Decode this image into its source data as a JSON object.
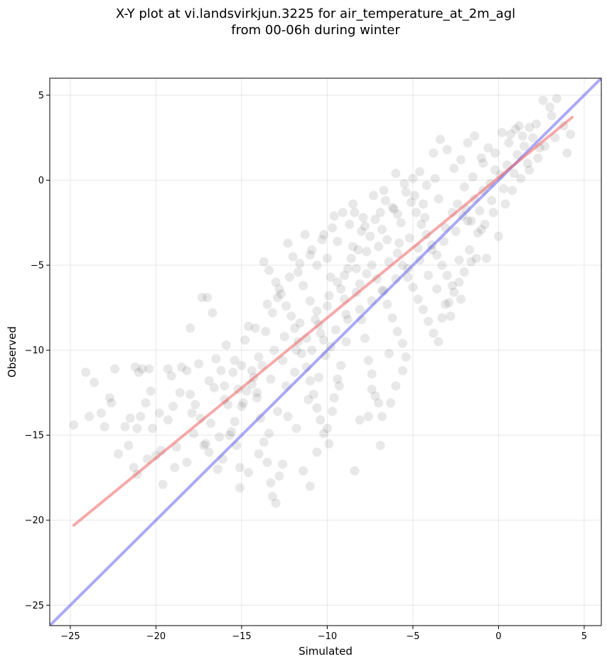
{
  "chart_data": {
    "type": "scatter",
    "title": "X-Y plot at vi.landsvirkjun.3225 for air_temperature_at_2m_agl",
    "subtitle": "from 00-06h during winter",
    "xlabel": "Simulated",
    "ylabel": "Observed",
    "xlim": [
      -26.2,
      6.0
    ],
    "ylim": [
      -26.2,
      6.0
    ],
    "xticks": [
      -25,
      -20,
      -15,
      -10,
      -5,
      0,
      5
    ],
    "yticks": [
      -25,
      -20,
      -15,
      -10,
      -5,
      0,
      5
    ],
    "xtick_labels": [
      "−25",
      "−20",
      "−15",
      "−10",
      "−5",
      "0",
      "5"
    ],
    "ytick_labels": [
      "−25",
      "−20",
      "−15",
      "−10",
      "−5",
      "0",
      "5"
    ],
    "grid": true,
    "point_color": "#000000",
    "point_opacity": 0.09,
    "points": [
      [
        -24.8,
        -14.4
      ],
      [
        -24.1,
        -11.3
      ],
      [
        -23.6,
        -11.9
      ],
      [
        -23.0,
        -14.5
      ],
      [
        -23.2,
        -13.7
      ],
      [
        -22.6,
        -13.1
      ],
      [
        -22.4,
        -11.1
      ],
      [
        -22.2,
        -16.1
      ],
      [
        -21.8,
        -14.5
      ],
      [
        -21.6,
        -15.6
      ],
      [
        -21.3,
        -16.9
      ],
      [
        -21.1,
        -14.6
      ],
      [
        -21.2,
        -11.0
      ],
      [
        -21.0,
        -11.3
      ],
      [
        -20.8,
        -11.1
      ],
      [
        -20.6,
        -13.1
      ],
      [
        -20.4,
        -11.1
      ],
      [
        -20.2,
        -14.6
      ],
      [
        -20.0,
        -16.2
      ],
      [
        -19.8,
        -13.7
      ],
      [
        -19.3,
        -11.1
      ],
      [
        -19.1,
        -11.5
      ],
      [
        -18.9,
        -16.9
      ],
      [
        -18.5,
        -11.0
      ],
      [
        -18.2,
        -11.2
      ],
      [
        -18.0,
        -12.6
      ],
      [
        -17.7,
        -13.2
      ],
      [
        -17.4,
        -14.0
      ],
      [
        -17.2,
        -15.6
      ],
      [
        -16.9,
        -16.0
      ],
      [
        -17.3,
        -6.9
      ],
      [
        -17.0,
        -6.9
      ],
      [
        -16.7,
        -7.8
      ],
      [
        -18.0,
        -8.7
      ],
      [
        -16.5,
        -10.5
      ],
      [
        -16.2,
        -11.2
      ],
      [
        -16.0,
        -12.1
      ],
      [
        -15.8,
        -13.2
      ],
      [
        -15.6,
        -14.8
      ],
      [
        -15.3,
        -15.6
      ],
      [
        -15.1,
        -16.9
      ],
      [
        -15.0,
        -10.9
      ],
      [
        -14.8,
        -9.4
      ],
      [
        -14.6,
        -8.6
      ],
      [
        -14.3,
        -11.6
      ],
      [
        -14.1,
        -12.8
      ],
      [
        -13.9,
        -14.0
      ],
      [
        -13.7,
        -15.4
      ],
      [
        -13.5,
        -16.6
      ],
      [
        -13.3,
        -17.8
      ],
      [
        -13.2,
        -18.6
      ],
      [
        -13.0,
        -19.0
      ],
      [
        -13.7,
        -4.8
      ],
      [
        -13.4,
        -5.3
      ],
      [
        -13.0,
        -6.0
      ],
      [
        -12.7,
        -6.7
      ],
      [
        -12.4,
        -7.4
      ],
      [
        -12.1,
        -8.0
      ],
      [
        -11.9,
        -8.7
      ],
      [
        -11.7,
        -9.5
      ],
      [
        -11.5,
        -10.2
      ],
      [
        -11.2,
        -11.0
      ],
      [
        -11.0,
        -11.8
      ],
      [
        -10.8,
        -12.6
      ],
      [
        -10.6,
        -13.4
      ],
      [
        -10.4,
        -14.1
      ],
      [
        -10.2,
        -14.9
      ],
      [
        -9.9,
        -15.5
      ],
      [
        -11.8,
        -14.6
      ],
      [
        -12.3,
        -13.9
      ],
      [
        -12.6,
        -16.7
      ],
      [
        -12.8,
        -17.4
      ],
      [
        -11.4,
        -17.1
      ],
      [
        -11.0,
        -18.0
      ],
      [
        -10.6,
        -16.0
      ],
      [
        -11.3,
        -3.2
      ],
      [
        -11.0,
        -4.4
      ],
      [
        -10.6,
        -5.0
      ],
      [
        -10.2,
        -3.2
      ],
      [
        -10.0,
        -4.6
      ],
      [
        -9.8,
        -5.7
      ],
      [
        -9.6,
        -2.1
      ],
      [
        -9.4,
        -3.6
      ],
      [
        -9.2,
        -6.4
      ],
      [
        -9.0,
        -7.0
      ],
      [
        -8.9,
        -7.9
      ],
      [
        -8.7,
        -2.6
      ],
      [
        -8.5,
        -3.9
      ],
      [
        -8.3,
        -5.2
      ],
      [
        -8.1,
        -6.1
      ],
      [
        -8.0,
        -8.2
      ],
      [
        -7.8,
        -9.3
      ],
      [
        -7.6,
        -10.6
      ],
      [
        -7.4,
        -11.4
      ],
      [
        -7.2,
        -12.7
      ],
      [
        -7.0,
        -13.1
      ],
      [
        -6.8,
        -13.9
      ],
      [
        -6.9,
        -15.6
      ],
      [
        -8.1,
        -14.1
      ],
      [
        -8.4,
        -17.1
      ],
      [
        -9.2,
        -10.9
      ],
      [
        -9.4,
        -11.7
      ],
      [
        -9.6,
        -12.8
      ],
      [
        -9.8,
        -9.8
      ],
      [
        -10.1,
        -10.3
      ],
      [
        -10.4,
        -9.0
      ],
      [
        -10.7,
        -8.2
      ],
      [
        -11.0,
        -7.1
      ],
      [
        -11.4,
        -6.2
      ],
      [
        -11.7,
        -5.4
      ],
      [
        -12.0,
        -4.5
      ],
      [
        -12.3,
        -3.7
      ],
      [
        -12.8,
        -6.4
      ],
      [
        -13.2,
        -7.8
      ],
      [
        -13.6,
        -8.9
      ],
      [
        -14.0,
        -10.4
      ],
      [
        -14.4,
        -11.2
      ],
      [
        -14.7,
        -12.4
      ],
      [
        -15.0,
        -13.3
      ],
      [
        -15.4,
        -14.2
      ],
      [
        -15.7,
        -15.0
      ],
      [
        -16.1,
        -16.4
      ],
      [
        -16.4,
        -17.0
      ],
      [
        -8.4,
        -1.9
      ],
      [
        -8.0,
        -3.0
      ],
      [
        -7.7,
        -4.2
      ],
      [
        -7.4,
        -5.0
      ],
      [
        -7.1,
        -5.8
      ],
      [
        -6.8,
        -6.5
      ],
      [
        -6.5,
        -7.3
      ],
      [
        -6.2,
        -8.1
      ],
      [
        -5.9,
        -8.9
      ],
      [
        -5.6,
        -9.6
      ],
      [
        -5.4,
        -10.4
      ],
      [
        -5.6,
        -11.2
      ],
      [
        -6.4,
        -10.2
      ],
      [
        -6.0,
        -12.1
      ],
      [
        -6.3,
        -13.1
      ],
      [
        -7.4,
        -12.3
      ],
      [
        -7.6,
        -13.9
      ],
      [
        -7.2,
        -2.3
      ],
      [
        -6.8,
        -2.9
      ],
      [
        -6.5,
        -3.5
      ],
      [
        -6.2,
        -1.6
      ],
      [
        -5.9,
        -4.3
      ],
      [
        -5.6,
        -5.0
      ],
      [
        -5.3,
        -5.7
      ],
      [
        -5.0,
        -6.3
      ],
      [
        -4.7,
        -7.0
      ],
      [
        -4.4,
        -7.6
      ],
      [
        -4.1,
        -8.3
      ],
      [
        -3.8,
        -9.0
      ],
      [
        -3.5,
        -9.5
      ],
      [
        -3.3,
        -8.1
      ],
      [
        -2.9,
        -7.2
      ],
      [
        -2.6,
        -6.6
      ],
      [
        -2.3,
        -6.0
      ],
      [
        -2.0,
        -5.4
      ],
      [
        -1.6,
        -4.8
      ],
      [
        -1.3,
        -4.6
      ],
      [
        -5.4,
        -0.7
      ],
      [
        -5.1,
        -1.3
      ],
      [
        -4.8,
        -1.9
      ],
      [
        -4.5,
        -2.6
      ],
      [
        -4.2,
        -3.2
      ],
      [
        -3.9,
        -3.8
      ],
      [
        -3.6,
        -4.4
      ],
      [
        -3.3,
        -5.0
      ],
      [
        -3.0,
        -5.6
      ],
      [
        -2.7,
        -6.2
      ],
      [
        -5.0,
        0.1
      ],
      [
        -4.6,
        0.5
      ],
      [
        -4.2,
        -0.3
      ],
      [
        -3.8,
        1.6
      ],
      [
        -3.4,
        2.4
      ],
      [
        -3.0,
        1.8
      ],
      [
        -2.6,
        0.7
      ],
      [
        -2.2,
        1.2
      ],
      [
        -1.8,
        2.2
      ],
      [
        -1.4,
        2.6
      ],
      [
        -1.0,
        1.3
      ],
      [
        -0.6,
        1.9
      ],
      [
        -0.2,
        0.6
      ],
      [
        0.2,
        2.8
      ],
      [
        0.6,
        2.2
      ],
      [
        1.0,
        3.0
      ],
      [
        1.4,
        2.6
      ],
      [
        1.8,
        3.1
      ],
      [
        2.2,
        3.3
      ],
      [
        2.6,
        4.7
      ],
      [
        3.0,
        4.3
      ],
      [
        3.4,
        4.8
      ],
      [
        3.8,
        3.2
      ],
      [
        4.2,
        2.7
      ],
      [
        4.0,
        1.6
      ],
      [
        3.1,
        3.8
      ],
      [
        2.4,
        1.9
      ],
      [
        1.7,
        1.0
      ],
      [
        0.9,
        0.4
      ],
      [
        0.3,
        -0.5
      ],
      [
        -0.4,
        -1.2
      ],
      [
        -1.1,
        -1.8
      ],
      [
        -1.8,
        -2.4
      ],
      [
        -2.5,
        -3.0
      ],
      [
        -3.2,
        -3.6
      ],
      [
        -3.9,
        -4.1
      ],
      [
        -4.6,
        -4.7
      ],
      [
        -5.3,
        -5.2
      ],
      [
        -6.0,
        -5.8
      ],
      [
        -6.7,
        -6.5
      ],
      [
        -7.4,
        -7.1
      ],
      [
        -8.1,
        -7.6
      ],
      [
        -8.8,
        -8.2
      ],
      [
        -9.5,
        -8.8
      ],
      [
        -10.2,
        -9.4
      ],
      [
        -10.9,
        -10.0
      ],
      [
        -2.1,
        -2.1
      ],
      [
        -1.9,
        -1.7
      ],
      [
        -1.6,
        -2.4
      ],
      [
        -2.4,
        -1.4
      ],
      [
        -1.4,
        -1.1
      ],
      [
        -2.7,
        -1.9
      ],
      [
        -3.1,
        -2.8
      ],
      [
        -0.9,
        -0.6
      ],
      [
        -0.5,
        -0.2
      ],
      [
        0.1,
        0.3
      ],
      [
        0.5,
        0.9
      ],
      [
        1.1,
        1.5
      ],
      [
        1.5,
        2.0
      ],
      [
        2.0,
        2.5
      ],
      [
        -6.0,
        0.4
      ],
      [
        -5.5,
        -0.2
      ],
      [
        -4.9,
        -0.9
      ],
      [
        -6.6,
        -1.2
      ],
      [
        -7.8,
        -2.7
      ],
      [
        -8.6,
        -4.6
      ],
      [
        -9.0,
        -5.6
      ],
      [
        -9.9,
        -6.8
      ],
      [
        -10.6,
        -7.7
      ],
      [
        -11.6,
        -8.4
      ],
      [
        -12.5,
        -9.2
      ],
      [
        -13.1,
        -10.0
      ],
      [
        -13.8,
        -10.9
      ],
      [
        -14.4,
        -12.0
      ],
      [
        -15.2,
        -12.3
      ],
      [
        -16.0,
        -12.9
      ],
      [
        -16.8,
        -14.3
      ],
      [
        -17.8,
        -14.9
      ],
      [
        -18.8,
        -15.7
      ],
      [
        -19.7,
        -15.9
      ],
      [
        -20.5,
        -16.4
      ],
      [
        -19.6,
        -17.9
      ],
      [
        -21.1,
        -17.3
      ],
      [
        -20.9,
        -13.9
      ],
      [
        -18.6,
        -12.5
      ],
      [
        -19.0,
        -13.3
      ],
      [
        -17.5,
        -10.8
      ],
      [
        -16.9,
        -11.8
      ],
      [
        -15.9,
        -9.7
      ],
      [
        -15.4,
        -10.6
      ],
      [
        -14.2,
        -8.7
      ],
      [
        -13.5,
        -7.3
      ],
      [
        -12.9,
        -6.9
      ],
      [
        -12.2,
        -5.7
      ],
      [
        -11.6,
        -4.9
      ],
      [
        -10.9,
        -4.1
      ],
      [
        -10.3,
        -3.5
      ],
      [
        -9.7,
        -2.8
      ],
      [
        -9.1,
        -1.9
      ],
      [
        -8.5,
        -1.4
      ],
      [
        -7.9,
        -2.2
      ],
      [
        -7.3,
        -0.9
      ],
      [
        -6.7,
        -0.6
      ],
      [
        -6.1,
        -1.7
      ],
      [
        -5.7,
        -2.5
      ],
      [
        -5.2,
        -3.4
      ],
      [
        -4.7,
        -4.0
      ],
      [
        -4.1,
        -5.6
      ],
      [
        -3.6,
        -6.4
      ],
      [
        -3.1,
        -7.3
      ],
      [
        -2.8,
        -8.0
      ],
      [
        -2.2,
        -7.0
      ],
      [
        -1.7,
        -4.1
      ],
      [
        -1.2,
        -3.1
      ],
      [
        -0.8,
        -2.6
      ],
      [
        -0.3,
        -1.9
      ],
      [
        0.4,
        -1.4
      ],
      [
        0.8,
        -0.6
      ],
      [
        1.3,
        0.1
      ],
      [
        1.8,
        0.6
      ],
      [
        2.3,
        1.3
      ],
      [
        2.7,
        2.0
      ],
      [
        3.3,
        2.5
      ],
      [
        0.0,
        -3.3
      ],
      [
        -0.7,
        -4.6
      ],
      [
        -1.0,
        -2.9
      ],
      [
        -2.3,
        -4.7
      ],
      [
        -3.5,
        -1.1
      ],
      [
        -4.3,
        -2.2
      ],
      [
        -5.8,
        -3.7
      ],
      [
        -6.4,
        -4.8
      ],
      [
        -7.0,
        -3.9
      ],
      [
        -7.7,
        -5.5
      ],
      [
        -8.3,
        -6.6
      ],
      [
        -8.9,
        -9.5
      ],
      [
        -9.3,
        -12.1
      ],
      [
        -9.7,
        -13.6
      ],
      [
        -10.0,
        -14.6
      ],
      [
        -10.5,
        -11.6
      ],
      [
        -11.1,
        -12.9
      ],
      [
        -11.9,
        -11.3
      ],
      [
        -12.4,
        -12.1
      ],
      [
        -12.9,
        -13.6
      ],
      [
        -13.4,
        -14.9
      ],
      [
        -14.0,
        -16.1
      ],
      [
        -14.6,
        -17.2
      ],
      [
        -15.1,
        -18.1
      ],
      [
        -16.3,
        -15.1
      ],
      [
        -17.1,
        -15.5
      ],
      [
        -18.2,
        -16.6
      ],
      [
        -2.0,
        -0.4
      ],
      [
        -1.5,
        0.2
      ],
      [
        -0.9,
        1.0
      ],
      [
        -0.2,
        1.6
      ],
      [
        0.7,
        2.7
      ],
      [
        1.2,
        3.2
      ],
      [
        -3.7,
        0.1
      ],
      [
        -4.4,
        -1.4
      ],
      [
        -5.9,
        -2.0
      ],
      [
        -6.9,
        -1.9
      ],
      [
        -7.5,
        -3.3
      ],
      [
        -8.2,
        -4.1
      ],
      [
        -8.8,
        -5.2
      ],
      [
        -9.4,
        -6.0
      ],
      [
        -10.0,
        -7.4
      ],
      [
        -10.5,
        -8.5
      ],
      [
        -11.2,
        -9.3
      ],
      [
        -11.8,
        -10.0
      ],
      [
        -12.6,
        -10.6
      ],
      [
        -13.3,
        -11.7
      ],
      [
        -14.1,
        -12.5
      ],
      [
        -14.9,
        -13.1
      ],
      [
        -15.5,
        -11.3
      ],
      [
        -16.6,
        -12.2
      ],
      [
        -17.9,
        -13.7
      ],
      [
        -19.3,
        -14.1
      ],
      [
        -20.3,
        -12.4
      ],
      [
        -21.5,
        -14.0
      ],
      [
        -22.7,
        -12.8
      ],
      [
        -23.9,
        -13.9
      ]
    ],
    "reference_line": {
      "from": [
        -26.2,
        -26.2
      ],
      "to": [
        6.0,
        6.0
      ],
      "color": "#5555ee",
      "opacity": 0.5
    },
    "fit_line": {
      "from": [
        -24.8,
        -20.3
      ],
      "to": [
        4.3,
        3.7
      ],
      "color": "#ee5555",
      "opacity": 0.5
    }
  }
}
